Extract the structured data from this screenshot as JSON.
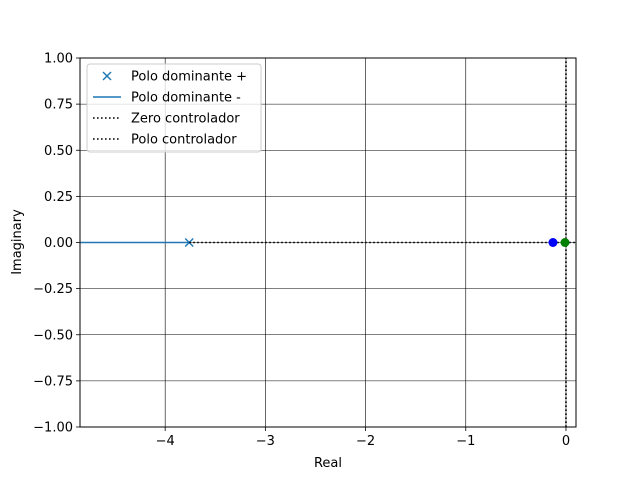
{
  "chart_data": {
    "type": "scatter",
    "title": "",
    "xlabel": "Real",
    "ylabel": "Imaginary",
    "xlim": [
      -4.85,
      0.1
    ],
    "ylim": [
      -1.0,
      1.0
    ],
    "x_ticks": [
      -4,
      -3,
      -2,
      -1,
      0
    ],
    "x_tick_labels": [
      "−4",
      "−3",
      "−2",
      "−1",
      "0"
    ],
    "y_ticks": [
      1.0,
      0.75,
      0.5,
      0.25,
      0.0,
      -0.25,
      -0.5,
      -0.75,
      -1.0
    ],
    "y_tick_labels": [
      "1.00",
      "0.75",
      "0.50",
      "0.25",
      "0.00",
      "−0.25",
      "−0.50",
      "−0.75",
      "−1.00"
    ],
    "grid": true,
    "legend_position": "top-left",
    "colors": {
      "series_blue": "#1f77b4",
      "pole_marker": "#0000ff",
      "zero_marker": "#008000",
      "axis_line": "#000000"
    },
    "series": [
      {
        "name": "Polo dominante +",
        "style": "x-marker",
        "color": "#1f77b4",
        "x": [
          -3.76
        ],
        "y": [
          0.0
        ]
      },
      {
        "name": "Polo dominante -",
        "style": "solid-line",
        "color": "#1f77b4",
        "x": [
          -4.85,
          -3.76
        ],
        "y": [
          0.0,
          0.0
        ]
      },
      {
        "name": "Zero controlador",
        "style": "dotted-line",
        "color": "#000000",
        "x": [
          -3.76,
          0.1
        ],
        "y": [
          0.0,
          0.0
        ]
      },
      {
        "name": "Polo controlador",
        "style": "dotted-line",
        "color": "#000000",
        "x": [
          0.0,
          0.0
        ],
        "y": [
          -1.0,
          1.0
        ]
      }
    ],
    "markers": [
      {
        "color": "#0000ff",
        "shape": "circle",
        "x": -0.13,
        "y": 0.0
      },
      {
        "color": "#008000",
        "shape": "circle",
        "x": -0.01,
        "y": 0.0
      }
    ]
  }
}
